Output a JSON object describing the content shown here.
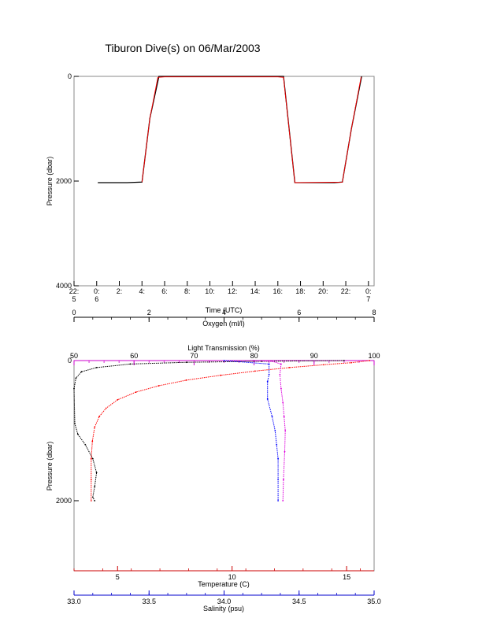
{
  "title": "Tiburon Dive(s) on 06/Mar/2003",
  "chart_data": [
    {
      "type": "line",
      "xlabel": "Time (UTC)",
      "ylabel": "Pressure (dbar)",
      "x_ticks": [
        {
          "value": 22.5,
          "top": "22:",
          "bottom": "5"
        },
        {
          "value": 24.5,
          "top": "0:",
          "bottom": "6"
        },
        {
          "value": 26.5,
          "top": "2:",
          "bottom": ""
        },
        {
          "value": 28.5,
          "top": "4:",
          "bottom": ""
        },
        {
          "value": 30.5,
          "top": "6:",
          "bottom": ""
        },
        {
          "value": 32.5,
          "top": "8:",
          "bottom": ""
        },
        {
          "value": 34.5,
          "top": "10:",
          "bottom": ""
        },
        {
          "value": 36.5,
          "top": "12:",
          "bottom": ""
        },
        {
          "value": 38.5,
          "top": "14:",
          "bottom": ""
        },
        {
          "value": 40.5,
          "top": "16:",
          "bottom": ""
        },
        {
          "value": 42.5,
          "top": "18:",
          "bottom": ""
        },
        {
          "value": 44.5,
          "top": "20:",
          "bottom": ""
        },
        {
          "value": 46.5,
          "top": "22:",
          "bottom": ""
        },
        {
          "value": 48.5,
          "top": "0:",
          "bottom": "7"
        }
      ],
      "xlim": [
        22.5,
        49.0
      ],
      "ylim": [
        4000,
        0
      ],
      "y_ticks": [
        "0",
        "2000",
        "4000"
      ],
      "y_tick_values": [
        0,
        2000,
        4000
      ],
      "series": [
        {
          "color": "#000000",
          "x": [
            24.6,
            27.2,
            28.5,
            29.2,
            30.0,
            30.5,
            31.0,
            35.0,
            39.0,
            40.5,
            41.0,
            42.0,
            43.0,
            44.5,
            45.5,
            46.2,
            47.0,
            47.9
          ],
          "y": [
            2030,
            2030,
            2020,
            800,
            0,
            0,
            0,
            0,
            0,
            0,
            0,
            2030,
            2030,
            2030,
            2030,
            2020,
            1000,
            0
          ]
        },
        {
          "color": "#ff0000",
          "x": [
            28.5,
            29.2,
            29.9,
            30.5,
            35.0,
            40.5,
            41.0,
            42.0,
            46.2,
            47.0,
            47.85
          ],
          "y": [
            2020,
            800,
            20,
            10,
            10,
            10,
            20,
            2030,
            2020,
            1000,
            10
          ]
        }
      ]
    },
    {
      "type": "scatter",
      "ylabel": "Pressure (dbar)",
      "ylim": [
        3000,
        0
      ],
      "y_ticks": [
        "0",
        "2000"
      ],
      "y_tick_values": [
        0,
        2000
      ],
      "axes": [
        {
          "name": "Oxygen (ml/l)",
          "position": "top",
          "color": "#000000",
          "range": [
            0,
            8
          ],
          "ticks": [
            0,
            2,
            4,
            6,
            8
          ]
        },
        {
          "name": "Light Transmission (%)",
          "position": "top",
          "color": "#cc00cc",
          "range": [
            50,
            100
          ],
          "ticks": [
            50,
            60,
            70,
            80,
            90,
            100
          ]
        },
        {
          "name": "Temperature (C)",
          "position": "bottom",
          "color": "#cc0000",
          "range": [
            3.1,
            16.2
          ],
          "ticks": [
            5,
            10,
            15
          ]
        },
        {
          "name": "Salinity (psu)",
          "position": "bottom",
          "color": "#0000cc",
          "range": [
            33.0,
            35.0
          ],
          "ticks": [
            "33.0",
            "33.5",
            "34.0",
            "34.5",
            "35.0"
          ],
          "tick_values": [
            33.0,
            33.5,
            34.0,
            34.5,
            35.0
          ]
        }
      ],
      "series": [
        {
          "axis": "Oxygen (ml/l)",
          "color": "#000000",
          "x": [
            7.2,
            5.0,
            3.0,
            1.5,
            0.6,
            0.2,
            0.05,
            0.0,
            0.02,
            0.1,
            0.3,
            0.5,
            0.6,
            0.55,
            0.5,
            0.55
          ],
          "y": [
            0,
            10,
            25,
            50,
            100,
            160,
            250,
            400,
            900,
            1050,
            1200,
            1400,
            1600,
            1800,
            1950,
            2000
          ]
        },
        {
          "axis": "Temperature (C)",
          "color": "#ff0000",
          "x": [
            16.0,
            15.2,
            14.0,
            12.5,
            11.0,
            9.5,
            8.0,
            6.8,
            5.8,
            5.0,
            4.5,
            4.2,
            4.0,
            3.9,
            3.85,
            3.85,
            3.85
          ],
          "y": [
            0,
            30,
            60,
            100,
            150,
            210,
            280,
            360,
            450,
            560,
            680,
            800,
            950,
            1150,
            1400,
            1700,
            2000
          ]
        },
        {
          "axis": "Salinity (psu)",
          "color": "#0000ff",
          "x": [
            34.0,
            34.3,
            34.3,
            34.29,
            34.29,
            34.32,
            34.34,
            34.35,
            34.36,
            34.36,
            34.36
          ],
          "y": [
            0,
            50,
            200,
            300,
            550,
            800,
            1000,
            1200,
            1400,
            1700,
            2000
          ]
        },
        {
          "axis": "Light Transmission (%)",
          "color": "#dd00dd",
          "x": [
            80.0,
            83.0,
            84.5,
            84.3,
            84.5,
            84.8,
            85.0,
            85.2,
            85.1,
            84.9,
            84.8
          ],
          "y": [
            0,
            10,
            50,
            200,
            400,
            600,
            800,
            1000,
            1300,
            1700,
            2000
          ]
        }
      ]
    }
  ]
}
